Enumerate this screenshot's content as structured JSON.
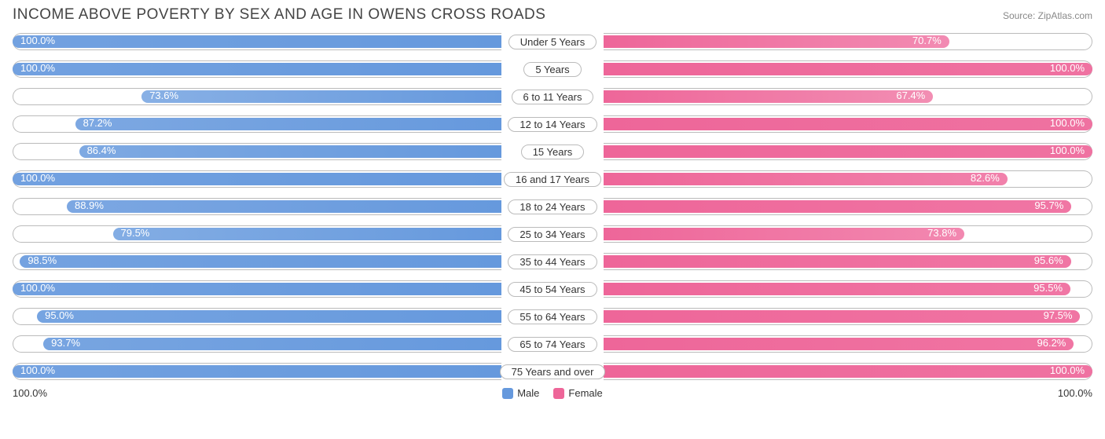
{
  "title": "INCOME ABOVE POVERTY BY SEX AND AGE IN OWENS CROSS ROADS",
  "source": "Source: ZipAtlas.com",
  "colors": {
    "male_base": "#6699dd",
    "female_base": "#ee6699",
    "track_border": "#bbbbbb",
    "text": "#444444"
  },
  "legend": {
    "male": "Male",
    "female": "Female"
  },
  "axis": {
    "left_label": "100.0%",
    "right_label": "100.0%"
  },
  "rows": [
    {
      "category": "Under 5 Years",
      "male": 100.0,
      "female": 70.7
    },
    {
      "category": "5 Years",
      "male": 100.0,
      "female": 100.0
    },
    {
      "category": "6 to 11 Years",
      "male": 73.6,
      "female": 67.4
    },
    {
      "category": "12 to 14 Years",
      "male": 87.2,
      "female": 100.0
    },
    {
      "category": "15 Years",
      "male": 86.4,
      "female": 100.0
    },
    {
      "category": "16 and 17 Years",
      "male": 100.0,
      "female": 82.6
    },
    {
      "category": "18 to 24 Years",
      "male": 88.9,
      "female": 95.7
    },
    {
      "category": "25 to 34 Years",
      "male": 79.5,
      "female": 73.8
    },
    {
      "category": "35 to 44 Years",
      "male": 98.5,
      "female": 95.6
    },
    {
      "category": "45 to 54 Years",
      "male": 100.0,
      "female": 95.5
    },
    {
      "category": "55 to 64 Years",
      "male": 95.0,
      "female": 97.5
    },
    {
      "category": "65 to 74 Years",
      "male": 93.7,
      "female": 96.2
    },
    {
      "category": "75 Years and over",
      "male": 100.0,
      "female": 100.0
    }
  ]
}
